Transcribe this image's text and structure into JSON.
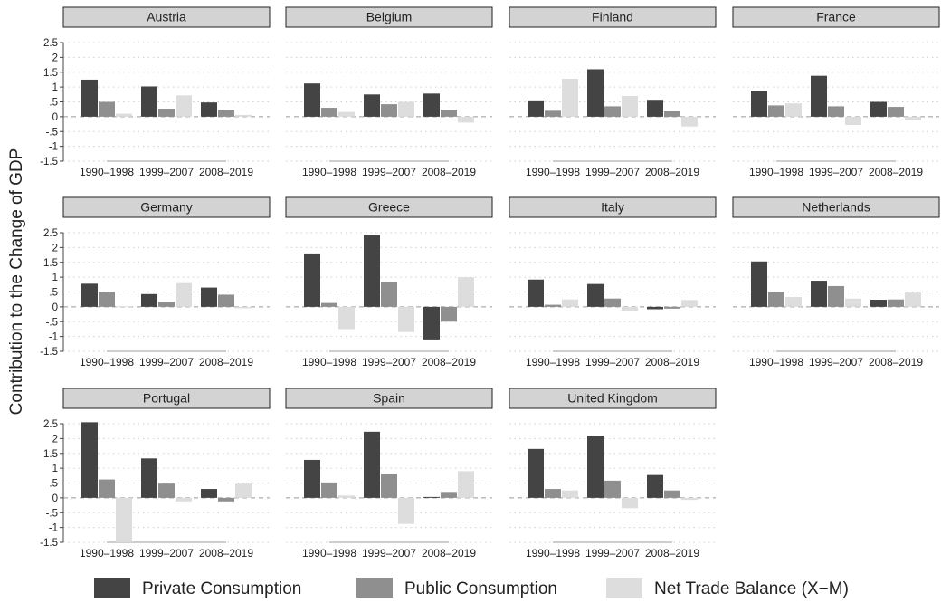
{
  "figure": {
    "ylabel": "Contribution to the Change of GDP",
    "legend": [
      {
        "name": "Private Consumption",
        "color": "#444444"
      },
      {
        "name": "Public Consumption",
        "color": "#8f8f8f"
      },
      {
        "name": "Net Trade Balance (X−M)",
        "color": "#dddddd"
      }
    ],
    "yticks": [
      "2.5",
      "2",
      "1.5",
      "1",
      ".5",
      "0",
      "-.5",
      "-1",
      "-1.5"
    ],
    "colors": {
      "panel_header": "#d3d3d3",
      "grid": "#cfcfcf",
      "zero_line": "#999999",
      "baseline": "#bdbdbd"
    }
  },
  "chart_data": [
    {
      "type": "bar",
      "title": "Austria",
      "categories": [
        "1990–1998",
        "1999–2007",
        "2008–2019"
      ],
      "ylim": [
        -1.5,
        2.5
      ],
      "legend_position": "bottom",
      "series": [
        {
          "name": "Private Consumption",
          "values": [
            1.25,
            1.02,
            0.48
          ]
        },
        {
          "name": "Public Consumption",
          "values": [
            0.5,
            0.27,
            0.23
          ]
        },
        {
          "name": "Net Trade Balance (X−M)",
          "values": [
            0.1,
            0.72,
            0.06
          ]
        }
      ]
    },
    {
      "type": "bar",
      "title": "Belgium",
      "categories": [
        "1990–1998",
        "1999–2007",
        "2008–2019"
      ],
      "ylim": [
        -1.5,
        2.5
      ],
      "legend_position": "bottom",
      "series": [
        {
          "name": "Private Consumption",
          "values": [
            1.12,
            0.75,
            0.78
          ]
        },
        {
          "name": "Public Consumption",
          "values": [
            0.3,
            0.42,
            0.24
          ]
        },
        {
          "name": "Net Trade Balance (X−M)",
          "values": [
            0.16,
            0.5,
            -0.2
          ]
        }
      ]
    },
    {
      "type": "bar",
      "title": "Finland",
      "categories": [
        "1990–1998",
        "1999–2007",
        "2008–2019"
      ],
      "ylim": [
        -1.5,
        2.5
      ],
      "legend_position": "bottom",
      "series": [
        {
          "name": "Private Consumption",
          "values": [
            0.55,
            1.6,
            0.57
          ]
        },
        {
          "name": "Public Consumption",
          "values": [
            0.2,
            0.35,
            0.18
          ]
        },
        {
          "name": "Net Trade Balance (X−M)",
          "values": [
            1.28,
            0.7,
            -0.33
          ]
        }
      ]
    },
    {
      "type": "bar",
      "title": "France",
      "categories": [
        "1990–1998",
        "1999–2007",
        "2008–2019"
      ],
      "ylim": [
        -1.5,
        2.5
      ],
      "legend_position": "bottom",
      "series": [
        {
          "name": "Private Consumption",
          "values": [
            0.88,
            1.38,
            0.5
          ]
        },
        {
          "name": "Public Consumption",
          "values": [
            0.38,
            0.35,
            0.33
          ]
        },
        {
          "name": "Net Trade Balance (X−M)",
          "values": [
            0.45,
            -0.28,
            -0.12
          ]
        }
      ]
    },
    {
      "type": "bar",
      "title": "Germany",
      "categories": [
        "1990–1998",
        "1999–2007",
        "2008–2019"
      ],
      "ylim": [
        -1.5,
        2.5
      ],
      "legend_position": "bottom",
      "series": [
        {
          "name": "Private Consumption",
          "values": [
            0.78,
            0.43,
            0.65
          ]
        },
        {
          "name": "Public Consumption",
          "values": [
            0.5,
            0.17,
            0.41
          ]
        },
        {
          "name": "Net Trade Balance (X−M)",
          "values": [
            0.02,
            0.8,
            -0.05
          ]
        }
      ]
    },
    {
      "type": "bar",
      "title": "Greece",
      "categories": [
        "1990–1998",
        "1999–2007",
        "2008–2019"
      ],
      "ylim": [
        -1.5,
        2.5
      ],
      "legend_position": "bottom",
      "series": [
        {
          "name": "Private Consumption",
          "values": [
            1.8,
            2.42,
            -1.1
          ]
        },
        {
          "name": "Public Consumption",
          "values": [
            0.13,
            0.82,
            -0.5
          ]
        },
        {
          "name": "Net Trade Balance (X−M)",
          "values": [
            -0.75,
            -0.85,
            1.0
          ]
        }
      ]
    },
    {
      "type": "bar",
      "title": "Italy",
      "categories": [
        "1990–1998",
        "1999–2007",
        "2008–2019"
      ],
      "ylim": [
        -1.5,
        2.5
      ],
      "legend_position": "bottom",
      "series": [
        {
          "name": "Private Consumption",
          "values": [
            0.92,
            0.77,
            -0.08
          ]
        },
        {
          "name": "Public Consumption",
          "values": [
            0.07,
            0.28,
            -0.06
          ]
        },
        {
          "name": "Net Trade Balance (X−M)",
          "values": [
            0.25,
            -0.15,
            0.23
          ]
        }
      ]
    },
    {
      "type": "bar",
      "title": "Netherlands",
      "categories": [
        "1990–1998",
        "1999–2007",
        "2008–2019"
      ],
      "ylim": [
        -1.5,
        2.5
      ],
      "legend_position": "bottom",
      "series": [
        {
          "name": "Private Consumption",
          "values": [
            1.53,
            0.88,
            0.24
          ]
        },
        {
          "name": "Public Consumption",
          "values": [
            0.5,
            0.7,
            0.25
          ]
        },
        {
          "name": "Net Trade Balance (X−M)",
          "values": [
            0.33,
            0.28,
            0.48
          ]
        }
      ]
    },
    {
      "type": "bar",
      "title": "Portugal",
      "categories": [
        "1990–1998",
        "1999–2007",
        "2008–2019"
      ],
      "ylim": [
        -1.5,
        2.5
      ],
      "legend_position": "bottom",
      "series": [
        {
          "name": "Private Consumption",
          "values": [
            2.55,
            1.33,
            0.3
          ]
        },
        {
          "name": "Public Consumption",
          "values": [
            0.62,
            0.48,
            -0.12
          ]
        },
        {
          "name": "Net Trade Balance (X−M)",
          "values": [
            -1.5,
            -0.12,
            0.48
          ]
        }
      ]
    },
    {
      "type": "bar",
      "title": "Spain",
      "categories": [
        "1990–1998",
        "1999–2007",
        "2008–2019"
      ],
      "ylim": [
        -1.5,
        2.5
      ],
      "legend_position": "bottom",
      "series": [
        {
          "name": "Private Consumption",
          "values": [
            1.28,
            2.23,
            0.03
          ]
        },
        {
          "name": "Public Consumption",
          "values": [
            0.52,
            0.82,
            0.2
          ]
        },
        {
          "name": "Net Trade Balance (X−M)",
          "values": [
            0.08,
            -0.88,
            0.9
          ]
        }
      ]
    },
    {
      "type": "bar",
      "title": "United Kingdom",
      "categories": [
        "1990–1998",
        "1999–2007",
        "2008–2019"
      ],
      "ylim": [
        -1.5,
        2.5
      ],
      "legend_position": "bottom",
      "series": [
        {
          "name": "Private Consumption",
          "values": [
            1.65,
            2.1,
            0.77
          ]
        },
        {
          "name": "Public Consumption",
          "values": [
            0.3,
            0.58,
            0.25
          ]
        },
        {
          "name": "Net Trade Balance (X−M)",
          "values": [
            0.25,
            -0.35,
            -0.07
          ]
        }
      ]
    }
  ]
}
